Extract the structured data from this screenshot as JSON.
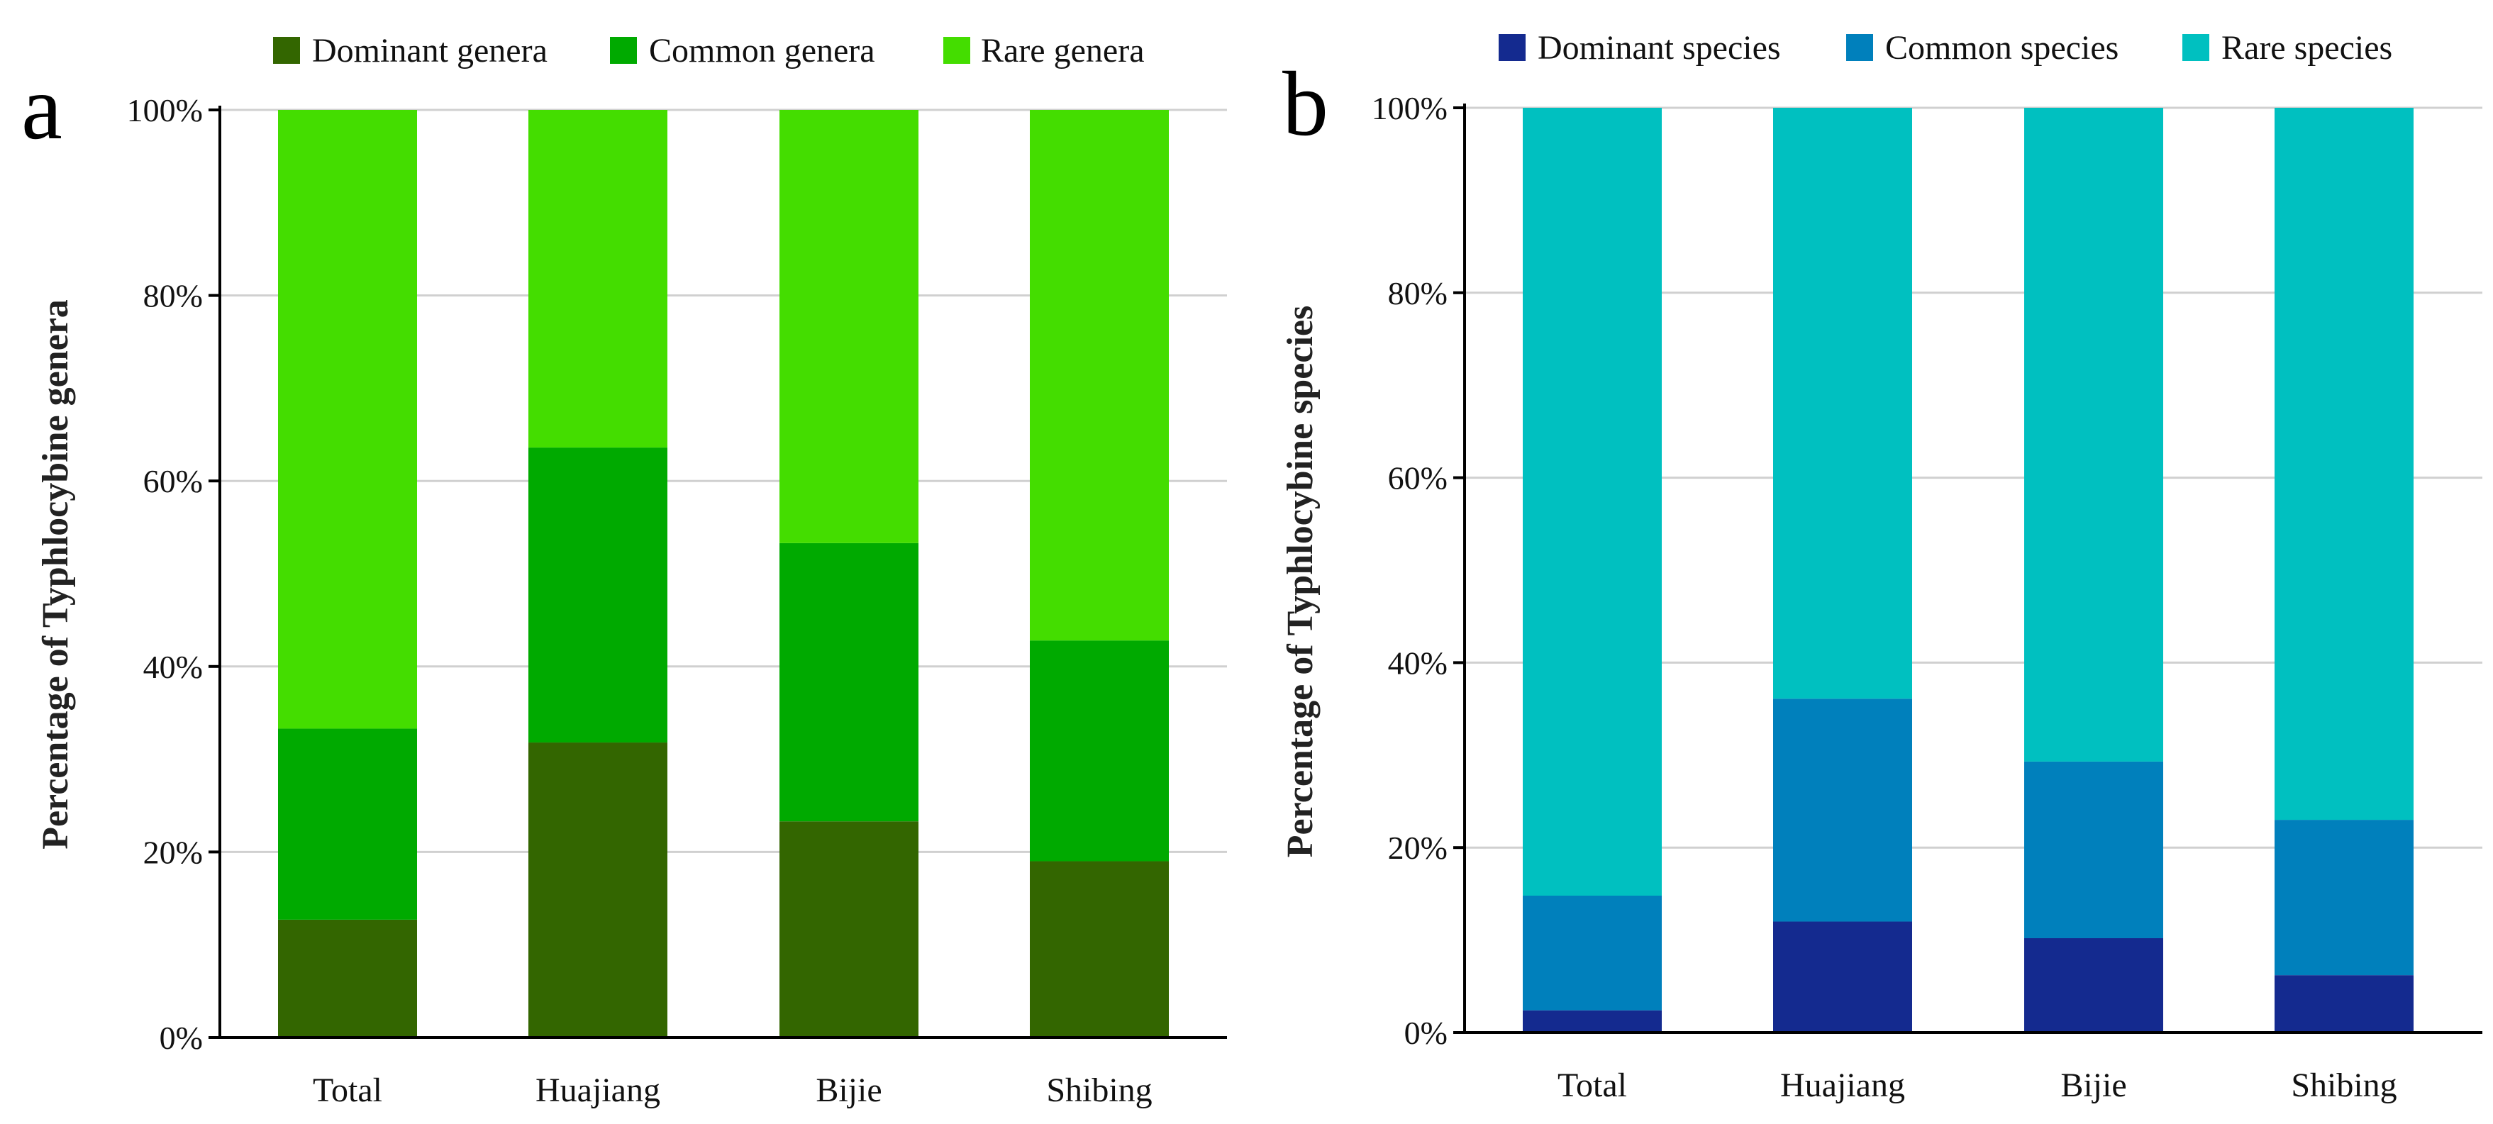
{
  "chart_data": [
    {
      "type": "bar",
      "stacked": true,
      "panel_label": "a",
      "title": "",
      "xlabel": "",
      "ylabel": "Percentage of Typhlocybine genera",
      "categories": [
        "Total",
        "Huajiang",
        "Bijie",
        "Shibing"
      ],
      "ylim": [
        0,
        100
      ],
      "yticks": [
        "0%",
        "20%",
        "40%",
        "60%",
        "80%",
        "100%"
      ],
      "grid": true,
      "legend_position": "top",
      "series": [
        {
          "name": "Dominant genera",
          "color": "#336600",
          "values": [
            12.7,
            31.8,
            23.3,
            19.0
          ]
        },
        {
          "name": "Common genera",
          "color": "#00AA00",
          "values": [
            20.6,
            31.8,
            30.0,
            23.8
          ]
        },
        {
          "name": "Rare genera",
          "color": "#44DD00",
          "values": [
            66.7,
            36.4,
            46.7,
            57.2
          ]
        }
      ]
    },
    {
      "type": "bar",
      "stacked": true,
      "panel_label": "b",
      "title": "",
      "xlabel": "",
      "ylabel": "Percentage of Typhlocybine species",
      "categories": [
        "Total",
        "Huajiang",
        "Bijie",
        "Shibing"
      ],
      "ylim": [
        0,
        100
      ],
      "yticks": [
        "0%",
        "20%",
        "40%",
        "60%",
        "80%",
        "100%"
      ],
      "grid": true,
      "legend_position": "top",
      "series": [
        {
          "name": "Dominant species",
          "color": "#142A8F",
          "values": [
            2.4,
            12.0,
            10.2,
            6.2
          ]
        },
        {
          "name": "Common species",
          "color": "#0080BC",
          "values": [
            12.4,
            24.1,
            19.1,
            16.8
          ]
        },
        {
          "name": "Rare species",
          "color": "#00C0C0",
          "values": [
            85.2,
            63.9,
            70.7,
            77.0
          ]
        }
      ]
    }
  ]
}
